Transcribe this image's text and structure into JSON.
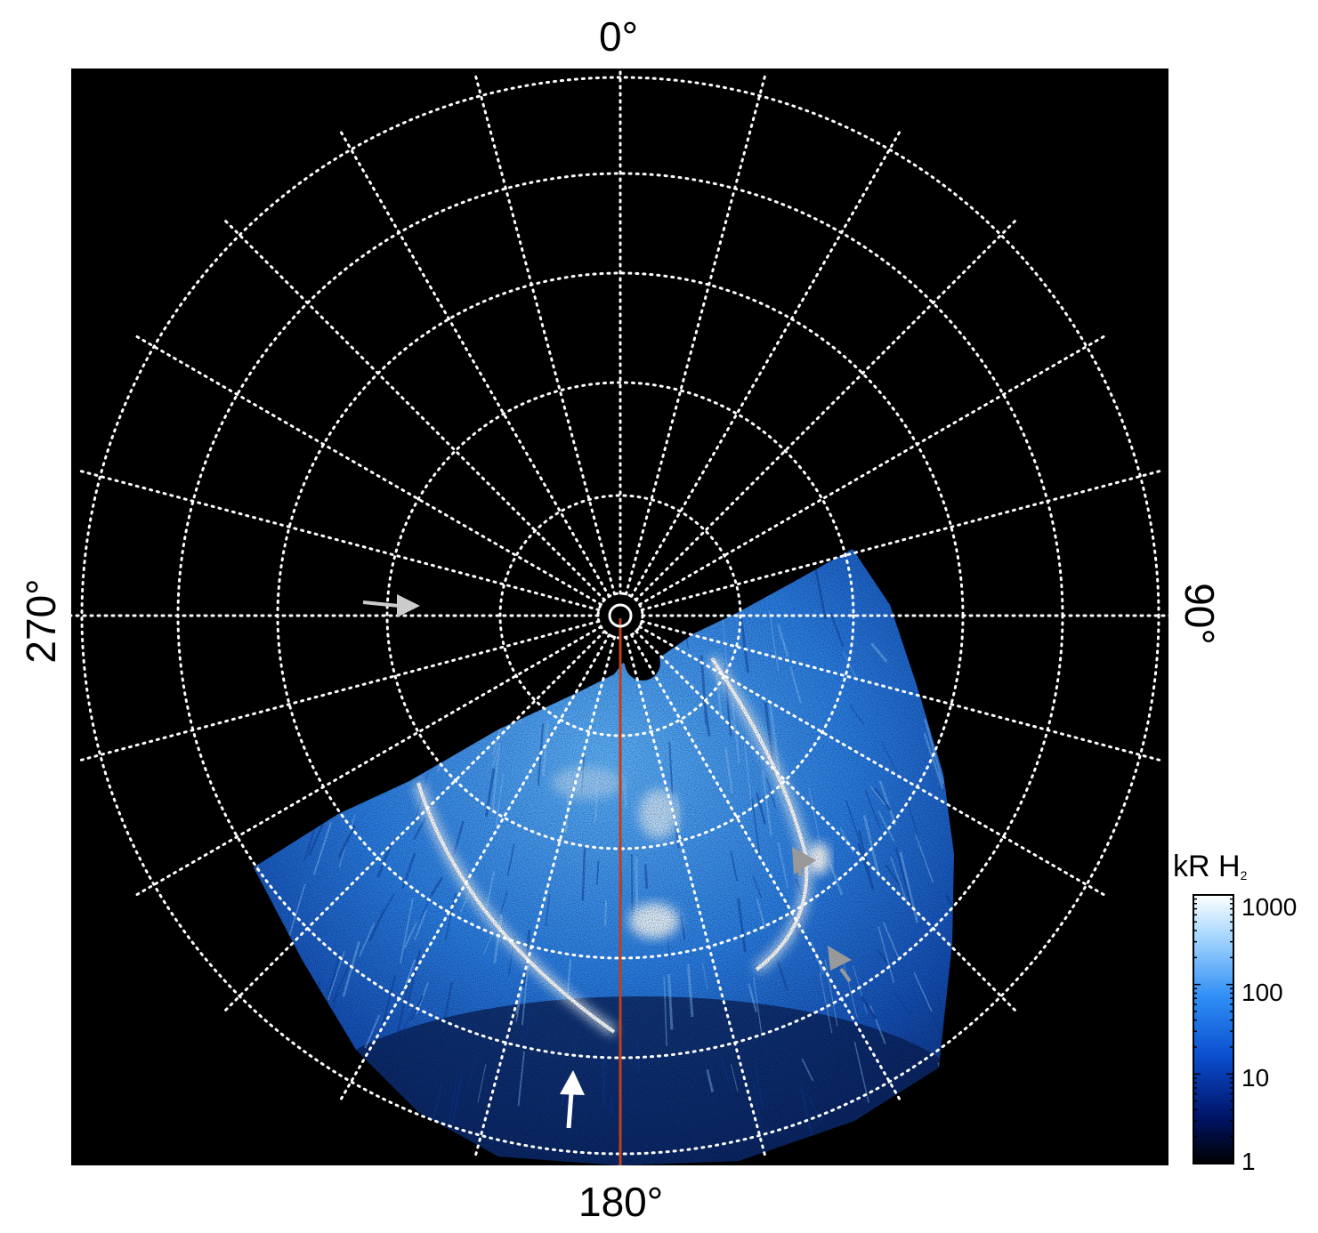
{
  "map": {
    "azimuth_labels": {
      "top": "0°",
      "bottom": "180°",
      "left": "270°",
      "right": "90°"
    },
    "central_meridian_color": "#c0401a",
    "grid_color": "#ffffff",
    "background_color": "#000000"
  },
  "colorbar": {
    "title_main": "kR H",
    "title_sub": "2",
    "ticks": [
      "1000",
      "100",
      "10",
      "1"
    ],
    "scale": "log",
    "range": [
      1,
      1000
    ],
    "colors": [
      "#000000",
      "#00156b",
      "#0a4ecf",
      "#2f8ef5",
      "#a9d8ff",
      "#ffffff"
    ]
  },
  "annotations": {
    "arrow_colors": [
      "#ffffff",
      "#cccccc",
      "#999999"
    ]
  }
}
